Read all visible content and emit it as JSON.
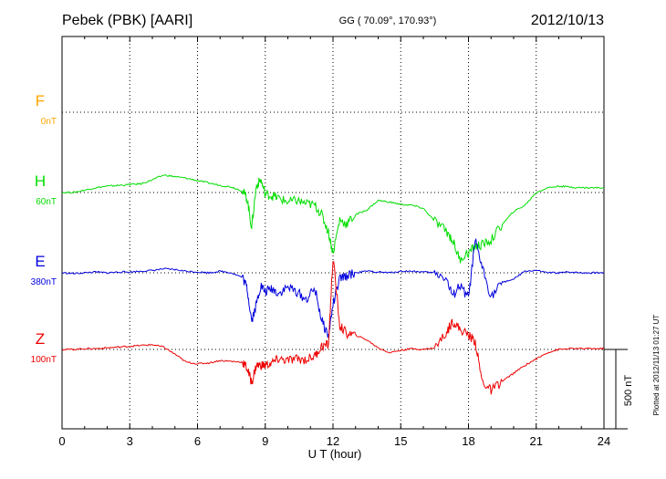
{
  "chart_data": {
    "type": "line",
    "title": "Pebek (PBK)  [AARI]",
    "coords": "GG ( 70.09°, 170.93°)",
    "date": "2012/10/13",
    "xlabel": "U T (hour)",
    "xlim": [
      0,
      24
    ],
    "xticks": [
      0,
      3,
      6,
      9,
      12,
      15,
      18,
      21,
      24
    ],
    "grid": true,
    "scale_bar_label": "500 nT",
    "plotted_note": "Plotted at 2012/11/13 01:27 UT",
    "y_units": "nT (relative to baseline offsets; 500 nT per 3.3 gridline spacing)",
    "series": [
      {
        "name": "F",
        "offset": "0nT",
        "color": "#ffa500",
        "x": [],
        "y": []
      },
      {
        "name": "H",
        "offset": "60nT",
        "color": "#00dd00",
        "x": [
          0,
          0.5,
          1,
          1.5,
          2,
          2.5,
          3,
          3.5,
          4,
          4.5,
          5,
          5.5,
          6,
          6.5,
          7,
          7.5,
          8,
          8.2,
          8.4,
          8.6,
          8.8,
          9,
          9.3,
          9.6,
          10,
          10.4,
          10.8,
          11.2,
          11.5,
          11.8,
          12,
          12.3,
          12.6,
          13,
          13.5,
          14,
          14.5,
          15,
          15.5,
          16,
          16.5,
          17,
          17.3,
          17.6,
          18,
          18.3,
          18.6,
          19,
          19.5,
          20,
          20.5,
          21,
          21.5,
          22,
          22.5,
          23,
          23.5,
          24
        ],
        "y": [
          0,
          0,
          15,
          30,
          40,
          45,
          50,
          55,
          80,
          110,
          100,
          90,
          75,
          60,
          45,
          35,
          10,
          -40,
          -220,
          40,
          80,
          -10,
          -20,
          -35,
          -60,
          -50,
          -70,
          -80,
          -140,
          -250,
          -380,
          -170,
          -200,
          -140,
          -110,
          -50,
          -60,
          -75,
          -80,
          -100,
          -180,
          -240,
          -300,
          -420,
          -380,
          -340,
          -330,
          -300,
          -200,
          -120,
          -80,
          0,
          30,
          40,
          35,
          30,
          30,
          30
        ]
      },
      {
        "name": "E",
        "offset": "380nT",
        "color": "#0000dd",
        "x": [
          0,
          0.5,
          1,
          1.5,
          2,
          2.5,
          3,
          3.5,
          4,
          4.5,
          5,
          5.5,
          6,
          6.5,
          7,
          7.5,
          8,
          8.2,
          8.4,
          8.6,
          8.8,
          9,
          9.3,
          9.6,
          10,
          10.4,
          10.8,
          11.2,
          11.5,
          11.8,
          12,
          12.3,
          12.6,
          13,
          13.5,
          14,
          14.5,
          15,
          15.5,
          16,
          16.5,
          17,
          17.3,
          17.6,
          18,
          18.3,
          18.6,
          19,
          19.5,
          20,
          20.5,
          21,
          21.5,
          22,
          22.5,
          23,
          23.5,
          24
        ],
        "y": [
          0,
          -5,
          0,
          5,
          0,
          5,
          5,
          10,
          15,
          25,
          20,
          10,
          5,
          0,
          10,
          0,
          -30,
          -100,
          -300,
          -200,
          -80,
          -120,
          -100,
          -130,
          -90,
          -120,
          -170,
          -100,
          -300,
          -400,
          -200,
          -40,
          -20,
          0,
          10,
          5,
          0,
          10,
          10,
          5,
          0,
          -30,
          -150,
          -80,
          -160,
          200,
          40,
          -150,
          -60,
          -40,
          10,
          15,
          0,
          0,
          5,
          0,
          0,
          0
        ]
      },
      {
        "name": "Z",
        "offset": "100nT",
        "color": "#ee0000",
        "x": [
          0,
          0.5,
          1,
          1.5,
          2,
          2.5,
          3,
          3.5,
          4,
          4.5,
          5,
          5.5,
          6,
          6.5,
          7,
          7.5,
          8,
          8.2,
          8.4,
          8.6,
          8.8,
          9,
          9.3,
          9.6,
          10,
          10.4,
          10.8,
          11.2,
          11.5,
          11.8,
          12,
          12.3,
          12.6,
          13,
          13.5,
          14,
          14.5,
          15,
          15.5,
          16,
          16.5,
          17,
          17.3,
          17.6,
          18,
          18.3,
          18.6,
          19,
          19.5,
          20,
          20.5,
          21,
          21.5,
          22,
          22.5,
          23,
          23.5,
          24
        ],
        "y": [
          0,
          0,
          5,
          5,
          10,
          15,
          20,
          25,
          30,
          15,
          -30,
          -80,
          -90,
          -85,
          -70,
          -75,
          -80,
          -120,
          -210,
          -100,
          -100,
          -100,
          -85,
          -60,
          -70,
          -60,
          -65,
          -40,
          20,
          30,
          580,
          150,
          100,
          90,
          60,
          10,
          -20,
          -5,
          5,
          0,
          10,
          100,
          180,
          130,
          90,
          50,
          -200,
          -260,
          -200,
          -150,
          -100,
          -60,
          -20,
          0,
          5,
          5,
          5,
          5
        ]
      }
    ]
  }
}
